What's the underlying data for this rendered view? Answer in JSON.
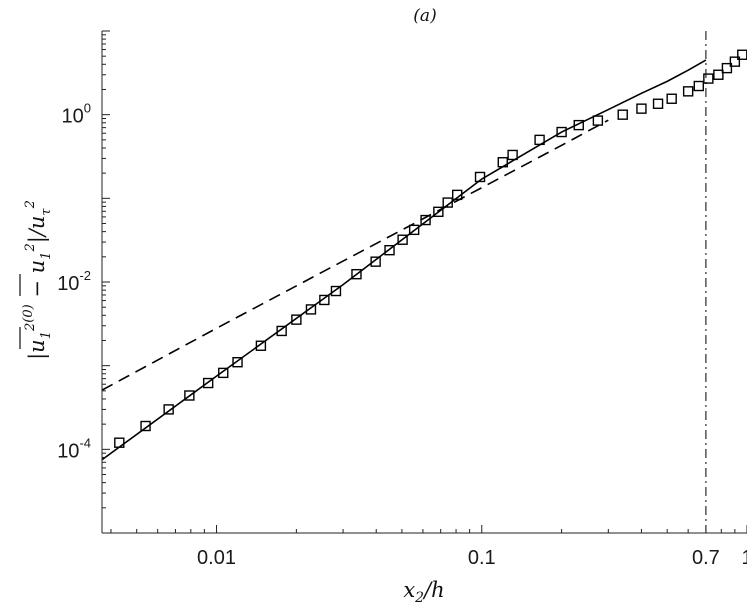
{
  "chart_data": {
    "type": "scatter",
    "title": "(a)",
    "xlabel": "x_2/h",
    "ylabel": "|u1^2(0) − u1^2| / u_tau^2",
    "x_scale": "log",
    "y_scale": "log",
    "xlim": [
      0.0037,
      1.0
    ],
    "ylim": [
      1e-05,
      10
    ],
    "x_ticks": [
      0.01,
      0.1,
      0.7,
      1
    ],
    "x_tick_labels": [
      "0.01",
      "0.1",
      "0.7",
      "1"
    ],
    "y_ticks": [
      0.0001,
      0.01,
      1
    ],
    "y_tick_labels": [
      {
        "mantissa": "10",
        "exponent": "-4"
      },
      {
        "mantissa": "10",
        "exponent": "-2"
      },
      {
        "mantissa": "10",
        "exponent": "0"
      }
    ],
    "vertical_reference_x": 0.7,
    "series": [
      {
        "style": "squares",
        "color": "#000000",
        "x": [
          0.0043,
          0.0054,
          0.0066,
          0.0079,
          0.0093,
          0.0106,
          0.012,
          0.0147,
          0.0176,
          0.02,
          0.0227,
          0.0255,
          0.0282,
          0.0337,
          0.0398,
          0.0449,
          0.0503,
          0.0556,
          0.0614,
          0.0686,
          0.0744,
          0.0808,
          0.0985,
          0.12,
          0.1307,
          0.1652,
          0.2,
          0.2321,
          0.274,
          0.34,
          0.4,
          0.462,
          0.52,
          0.6,
          0.658,
          0.715,
          0.78,
          0.84,
          0.9,
          0.96
        ],
        "y": [
          0.00012,
          0.00019,
          0.0003,
          0.00044,
          0.00062,
          0.00082,
          0.0011,
          0.00173,
          0.0026,
          0.00355,
          0.0047,
          0.0061,
          0.0078,
          0.0124,
          0.0175,
          0.024,
          0.032,
          0.042,
          0.055,
          0.069,
          0.089,
          0.11,
          0.18,
          0.27,
          0.33,
          0.5,
          0.62,
          0.75,
          0.85,
          1.0,
          1.18,
          1.35,
          1.55,
          1.9,
          2.2,
          2.7,
          3.0,
          3.6,
          4.3,
          5.2
        ]
      },
      {
        "style": "solid-line",
        "color": "#000000",
        "x": [
          0.0037,
          0.01,
          0.03,
          0.1,
          0.2,
          0.3,
          0.4,
          0.5,
          0.6,
          0.7
        ],
        "y": [
          7.5e-05,
          0.00075,
          0.0093,
          0.17,
          0.62,
          1.15,
          1.8,
          2.5,
          3.4,
          4.5
        ]
      },
      {
        "style": "dashed-line",
        "color": "#000000",
        "x": [
          0.0037,
          0.01,
          0.03,
          0.1,
          0.2,
          0.3
        ],
        "y": [
          0.00051,
          0.0028,
          0.0178,
          0.134,
          0.43,
          0.86
        ]
      }
    ]
  }
}
